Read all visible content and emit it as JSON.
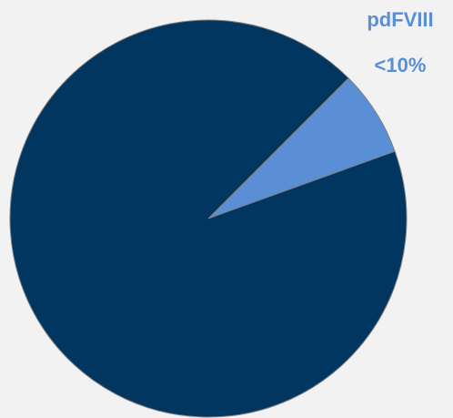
{
  "chart_data": {
    "type": "pie",
    "categories": [
      "pdFVIII",
      null
    ],
    "values": [
      7,
      93
    ],
    "value_labels": [
      "<10%",
      null
    ],
    "colors": [
      "#5a8fd6",
      "#003660"
    ],
    "label_color": "#5a8fd6"
  }
}
